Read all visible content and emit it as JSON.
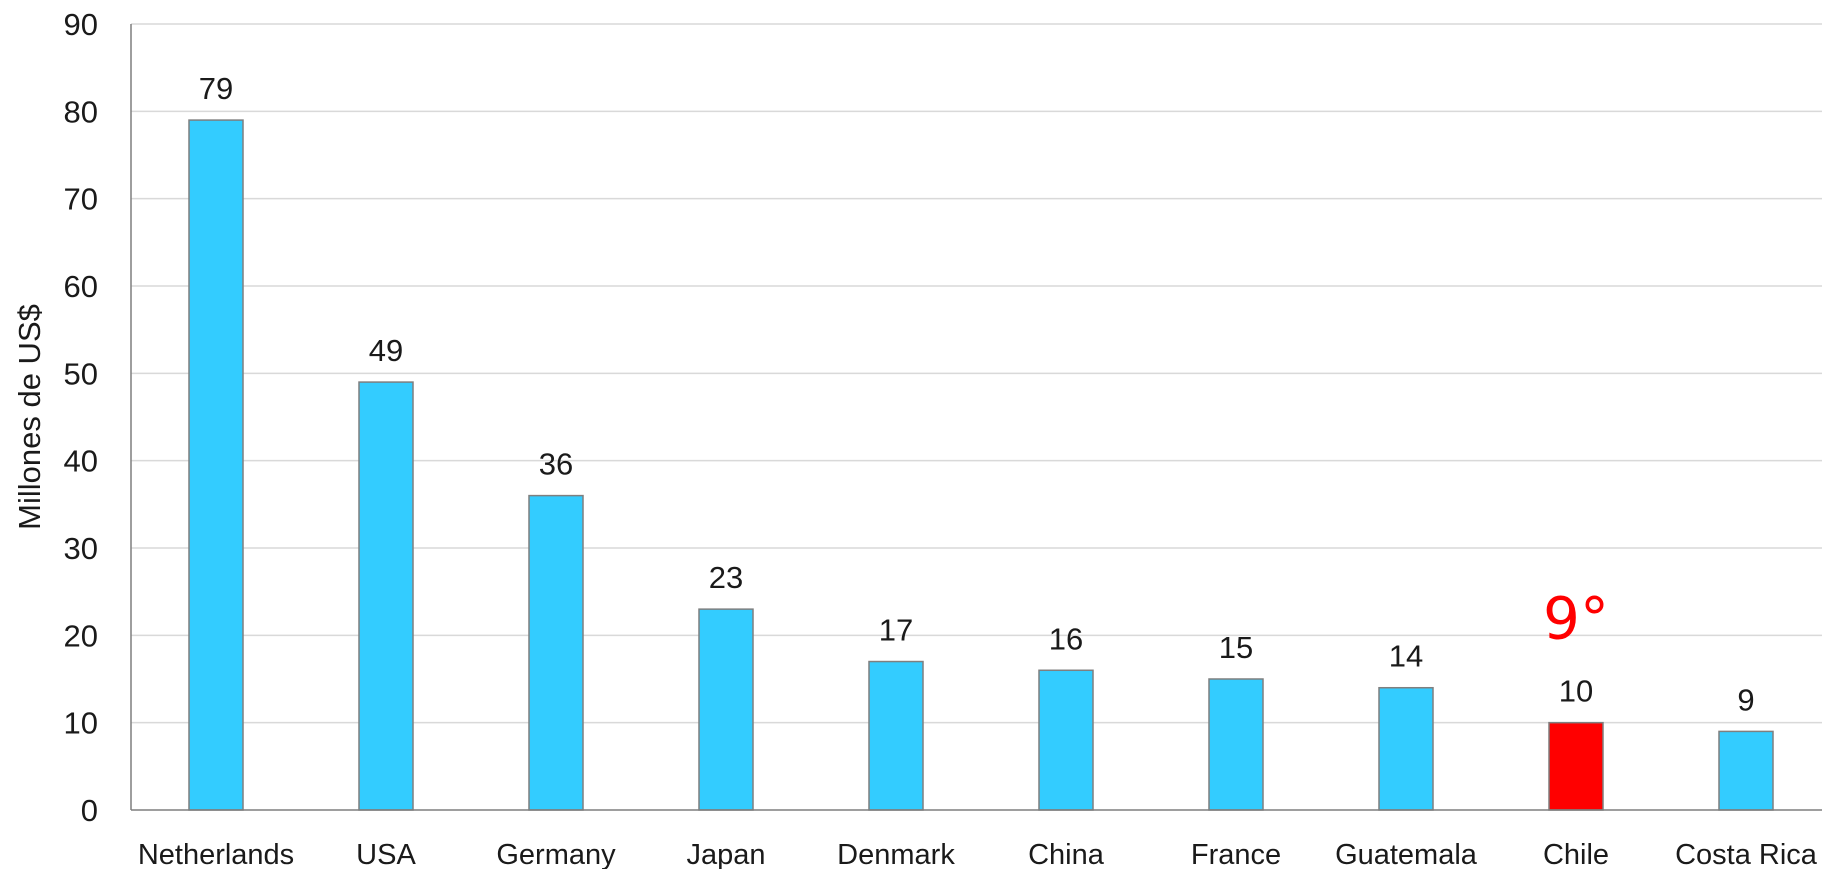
{
  "chart_data": {
    "type": "bar",
    "ylabel": "Millones de US$",
    "ylim": [
      0,
      90
    ],
    "yticks": [
      0,
      10,
      20,
      30,
      40,
      50,
      60,
      70,
      80,
      90
    ],
    "grid": true,
    "categories": [
      "Netherlands",
      "USA",
      "Germany",
      "Japan",
      "Denmark",
      "China",
      "France",
      "Guatemala",
      "Chile",
      "Costa Rica"
    ],
    "values": [
      79,
      49,
      36,
      23,
      17,
      16,
      15,
      14,
      10,
      9
    ],
    "highlight": {
      "category": "Chile",
      "annotation": "9°"
    },
    "colors": {
      "bar": "#33ccff",
      "highlight_bar": "#ff0000",
      "bar_outline": "#7f7f7f",
      "annotation": "#ff0000"
    }
  }
}
